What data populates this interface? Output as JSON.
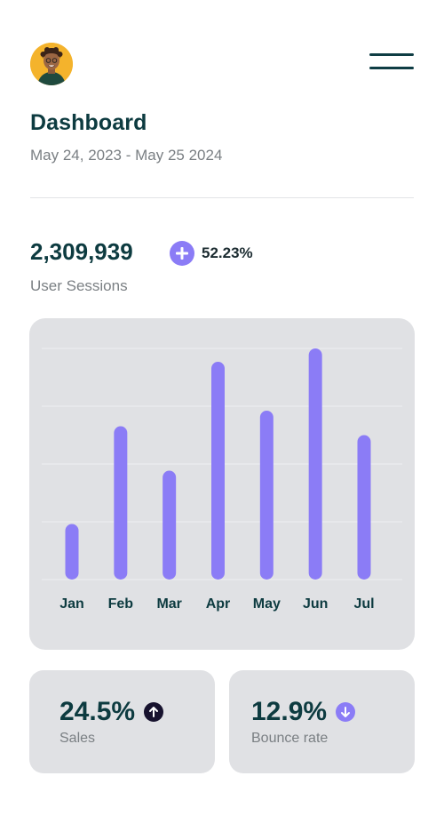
{
  "header": {
    "title": "Dashboard",
    "date_range": "May 24, 2023 - May 25 2024",
    "avatar_icon": "user-avatar",
    "menu_icon": "hamburger-menu-icon"
  },
  "metric": {
    "value": "2,309,939",
    "label": "User Sessions",
    "growth": "52.23%",
    "growth_icon": "plus-circle-icon"
  },
  "colors": {
    "primary_text": "#0d3b40",
    "accent": "#8b7cf6",
    "card_bg": "#e0e1e4",
    "muted_text": "#7a7f83"
  },
  "chart_data": {
    "type": "bar",
    "categories": [
      "Jan",
      "Feb",
      "Mar",
      "Apr",
      "May",
      "Jun",
      "Jul"
    ],
    "values": [
      25,
      69,
      49,
      98,
      76,
      104,
      65
    ],
    "ylim": [
      0,
      104
    ],
    "grid": true,
    "bar_color": "#8b7cf6"
  },
  "stats": {
    "sales": {
      "value": "24.5%",
      "label": "Sales",
      "trend": "up"
    },
    "bounce": {
      "value": "12.9%",
      "label": "Bounce rate",
      "trend": "down"
    }
  }
}
